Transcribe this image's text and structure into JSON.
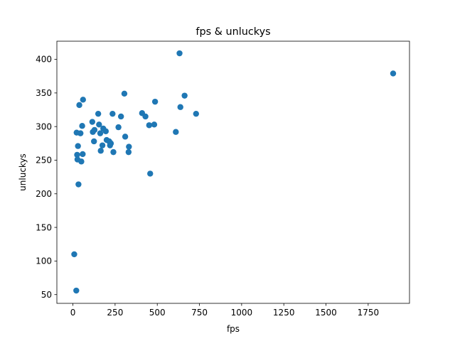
{
  "chart_data": {
    "type": "scatter",
    "title": "fps & unluckys",
    "xlabel": "fps",
    "ylabel": "unluckys",
    "xlim": [
      -95,
      1995
    ],
    "ylim": [
      37,
      427
    ],
    "xticks": [
      0,
      250,
      500,
      750,
      1000,
      1250,
      1500,
      1750
    ],
    "yticks": [
      50,
      100,
      150,
      200,
      250,
      300,
      350,
      400
    ],
    "grid": false,
    "legend": "none",
    "marker_color": "#1f77b4",
    "points": [
      [
        8,
        110
      ],
      [
        20,
        56
      ],
      [
        22,
        291
      ],
      [
        25,
        258
      ],
      [
        27,
        251
      ],
      [
        30,
        271
      ],
      [
        33,
        214
      ],
      [
        38,
        332
      ],
      [
        45,
        290
      ],
      [
        50,
        248
      ],
      [
        55,
        301
      ],
      [
        58,
        259
      ],
      [
        60,
        340
      ],
      [
        115,
        307
      ],
      [
        118,
        292
      ],
      [
        125,
        278
      ],
      [
        128,
        295
      ],
      [
        150,
        319
      ],
      [
        155,
        303
      ],
      [
        162,
        290
      ],
      [
        165,
        264
      ],
      [
        175,
        272
      ],
      [
        180,
        297
      ],
      [
        195,
        293
      ],
      [
        200,
        280
      ],
      [
        215,
        278
      ],
      [
        220,
        272
      ],
      [
        225,
        275
      ],
      [
        235,
        319
      ],
      [
        240,
        262
      ],
      [
        270,
        299
      ],
      [
        285,
        315
      ],
      [
        305,
        349
      ],
      [
        310,
        285
      ],
      [
        330,
        262
      ],
      [
        332,
        270
      ],
      [
        410,
        320
      ],
      [
        430,
        315
      ],
      [
        452,
        302
      ],
      [
        458,
        230
      ],
      [
        482,
        303
      ],
      [
        487,
        337
      ],
      [
        610,
        292
      ],
      [
        632,
        409
      ],
      [
        637,
        329
      ],
      [
        662,
        346
      ],
      [
        730,
        319
      ],
      [
        1898,
        379
      ]
    ]
  }
}
